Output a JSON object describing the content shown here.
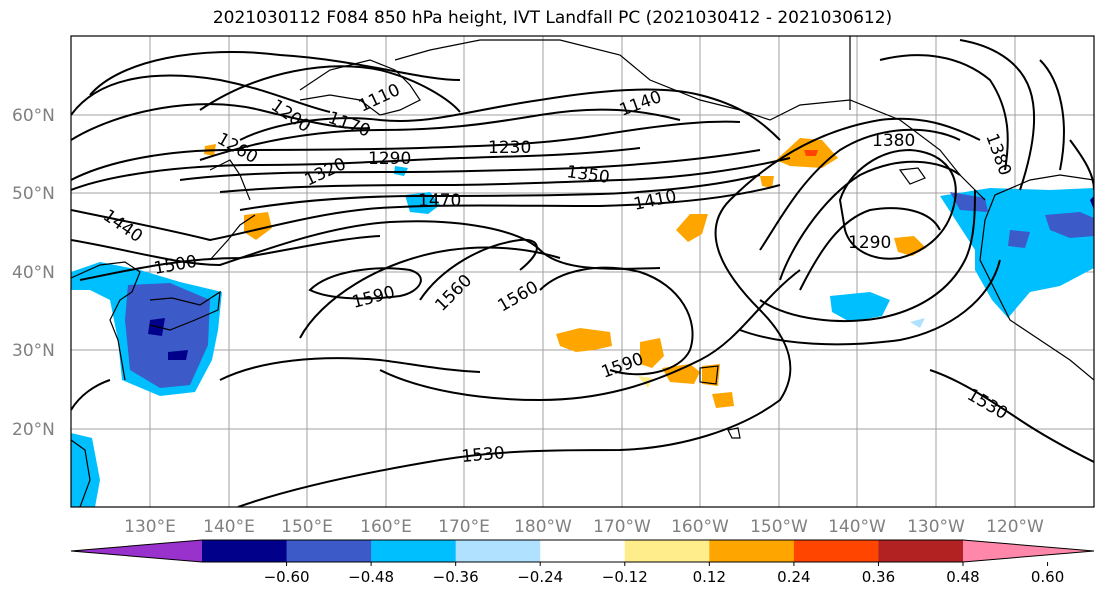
{
  "title": "2021030112 F084 850 hPa height, IVT Landfall PC (2021030412 - 2021030612)",
  "lat_labels": [
    "60°N",
    "50°N",
    "40°N",
    "30°N",
    "20°N"
  ],
  "lon_labels": [
    "130°E",
    "140°E",
    "150°E",
    "160°E",
    "170°E",
    "180°W",
    "170°W",
    "160°W",
    "150°W",
    "140°W",
    "130°W",
    "120°W"
  ],
  "contour_labels": [
    "1110",
    "1170",
    "1200",
    "1260",
    "1140",
    "1230",
    "1290",
    "1320",
    "1350",
    "1380",
    "1410",
    "1440",
    "1470",
    "1500",
    "1590",
    "1560",
    "1560",
    "1590",
    "1290",
    "1530",
    "1530",
    "1380"
  ],
  "colorbar": {
    "colors": [
      "#9932cc",
      "#00008b",
      "#3c5ac8",
      "#00bfff",
      "#b0e2ff",
      "#ffffff",
      "#ffec8b",
      "#ffa500",
      "#ff4500",
      "#b22222",
      "#ff88aa"
    ],
    "ticks": [
      "−0.60",
      "−0.48",
      "−0.36",
      "−0.24",
      "−0.12",
      "0.12",
      "0.24",
      "0.36",
      "0.48",
      "0.60"
    ]
  }
}
